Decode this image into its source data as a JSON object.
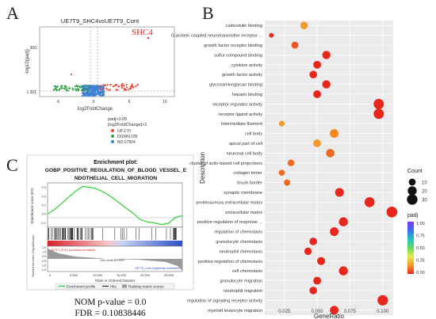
{
  "panels": {
    "a": {
      "letter": "A",
      "title": "UE7T9_SHC4vsUE7T9_Cont",
      "gene_label": "SHC4",
      "xlabel": "log2FoldChange",
      "ylabel": "-log10(padj)",
      "x_ticks": [
        "-5",
        "0",
        "5",
        "10"
      ],
      "y_ticks": [
        "300",
        "1.301"
      ],
      "legend_title_1": "padj<0.05",
      "legend_title_2": "|log2FoldChange|>1",
      "legend": [
        {
          "label": "UP:170",
          "color": "#e8453c"
        },
        {
          "label": "DOWN:185",
          "color": "#2e9e48"
        },
        {
          "label": "NO:27824",
          "color": "#3f7fd0"
        }
      ]
    },
    "b": {
      "letter": "B"
    },
    "c": {
      "letter": "C",
      "title": "Enrichment plot:",
      "subtitle_1": "GOBP_POSITIVE_REGULATION_OF_BLOOD_VESSEL_E",
      "subtitle_2": "NDOTHELIAL_CELL_MIGRATION",
      "es_ylabel": "Enrichment score (ES)",
      "es_ticks": [
        "0.3",
        "0.2",
        "0.1",
        "0.0",
        "-0.1"
      ],
      "rank_ylabel": "Ranked list metric (Signal2Noise)",
      "rank_ticks": [
        "2.5",
        "1.5",
        "0.5",
        "-0.5",
        "-1.5",
        "-2.5"
      ],
      "x_ticks": [
        "0",
        "5,000",
        "10,000",
        "15,000",
        "20,000",
        "25,000"
      ],
      "xlabel": "Rank in Ordered Dataset",
      "pos_label": "UE7T9_SHC4 (positively correlated)",
      "neg_label": "UE7T9_Cont (negatively correlated)",
      "zero_label": "Zero cross at 10007",
      "legend": [
        "Enrichment profile",
        "Hits",
        "Ranking metric scores"
      ],
      "nom_p": "NOM p-value = 0.0",
      "fdr": "FDR = 0.10838446",
      "es_curve": [
        0.0,
        0.05,
        0.12,
        0.19,
        0.26,
        0.31,
        0.3,
        0.28,
        0.24,
        0.19,
        0.13,
        0.07,
        0.01,
        -0.06,
        -0.09,
        -0.1,
        -0.12,
        -0.11,
        -0.04,
        -0.02
      ]
    }
  },
  "chart_data": {
    "type": "scatter",
    "xlabel": "GeneRatio",
    "ylabel": "Description",
    "xlim": [
      0.01,
      0.108
    ],
    "x_ticks": [
      0.025,
      0.05,
      0.075,
      0.1
    ],
    "x_tick_labels": [
      "0.025",
      "0.050",
      "0.075",
      "0.100"
    ],
    "count_legend": {
      "title": "Count",
      "values": [
        10,
        20,
        30
      ],
      "labels": [
        "10",
        "20",
        "30"
      ]
    },
    "padj_legend": {
      "title": "padj",
      "labels": [
        "1.00",
        "0.75",
        "0.50",
        "0.25",
        "0.00"
      ],
      "colors": [
        "#7a3bf0",
        "#3b6cf0",
        "#22c4c4",
        "#5ed85e",
        "#e8e84a",
        "#f39a2c",
        "#e8271c"
      ]
    },
    "points": [
      {
        "label": "calmodulin binding",
        "x": 0.04,
        "count": 12,
        "color": "#f39a2c"
      },
      {
        "label": "G-protein coupled neurotransmitter receptor ...",
        "x": 0.015,
        "count": 3,
        "color": "#e8271c"
      },
      {
        "label": "growth factor receptor binding",
        "x": 0.033,
        "count": 10,
        "color": "#f0541f"
      },
      {
        "label": "sulfur compound binding",
        "x": 0.057,
        "count": 16,
        "color": "#e8271c"
      },
      {
        "label": "cytokine activity",
        "x": 0.05,
        "count": 14,
        "color": "#e8271c"
      },
      {
        "label": "growth factor activity",
        "x": 0.047,
        "count": 13,
        "color": "#e8271c"
      },
      {
        "label": "glycosaminoglycan binding",
        "x": 0.057,
        "count": 16,
        "color": "#e8271c"
      },
      {
        "label": "heparin binding",
        "x": 0.05,
        "count": 14,
        "color": "#e8271c"
      },
      {
        "label": "receptor regulator activity",
        "x": 0.097,
        "count": 28,
        "color": "#e8271c"
      },
      {
        "label": "receptor ligand activity",
        "x": 0.097,
        "count": 28,
        "color": "#e8271c"
      },
      {
        "label": "intermediate filament",
        "x": 0.023,
        "count": 6,
        "color": "#f39a2c"
      },
      {
        "label": "cell body",
        "x": 0.063,
        "count": 18,
        "color": "#f5881f"
      },
      {
        "label": "apical part of cell",
        "x": 0.05,
        "count": 14,
        "color": "#f39a2c"
      },
      {
        "label": "neuronal cell body",
        "x": 0.06,
        "count": 17,
        "color": "#f06a22"
      },
      {
        "label": "cluster of actin-based cell projections",
        "x": 0.03,
        "count": 9,
        "color": "#f06a22"
      },
      {
        "label": "collagen trimer",
        "x": 0.023,
        "count": 7,
        "color": "#f06a22"
      },
      {
        "label": "brush border",
        "x": 0.027,
        "count": 8,
        "color": "#f06a22"
      },
      {
        "label": "synaptic membrane",
        "x": 0.067,
        "count": 19,
        "color": "#e8271c"
      },
      {
        "label": "proteinaceous extracellular matrix",
        "x": 0.09,
        "count": 26,
        "color": "#e8271c"
      },
      {
        "label": "extracellular matrix",
        "x": 0.107,
        "count": 31,
        "color": "#e8271c"
      },
      {
        "label": "positive regulation of response ...",
        "x": 0.07,
        "count": 20,
        "color": "#e8271c"
      },
      {
        "label": "regulation of chemotaxis",
        "x": 0.063,
        "count": 18,
        "color": "#e8271c"
      },
      {
        "label": "granulocyte chemotaxis",
        "x": 0.047,
        "count": 13,
        "color": "#e8271c"
      },
      {
        "label": "neutrophil chemotaxis",
        "x": 0.043,
        "count": 12,
        "color": "#e8271c"
      },
      {
        "label": "positive regulation of chemotaxis",
        "x": 0.053,
        "count": 15,
        "color": "#e8271c"
      },
      {
        "label": "cell chemotaxis",
        "x": 0.07,
        "count": 20,
        "color": "#e8271c"
      },
      {
        "label": "granulocyte migration",
        "x": 0.05,
        "count": 14,
        "color": "#e8271c"
      },
      {
        "label": "neutrophil migration",
        "x": 0.047,
        "count": 13,
        "color": "#e8271c"
      },
      {
        "label": "regulation of signaling receptor activity",
        "x": 0.1,
        "count": 29,
        "color": "#e8271c"
      },
      {
        "label": "myeloid leukocyte migration",
        "x": 0.063,
        "count": 18,
        "color": "#e8271c"
      }
    ]
  }
}
